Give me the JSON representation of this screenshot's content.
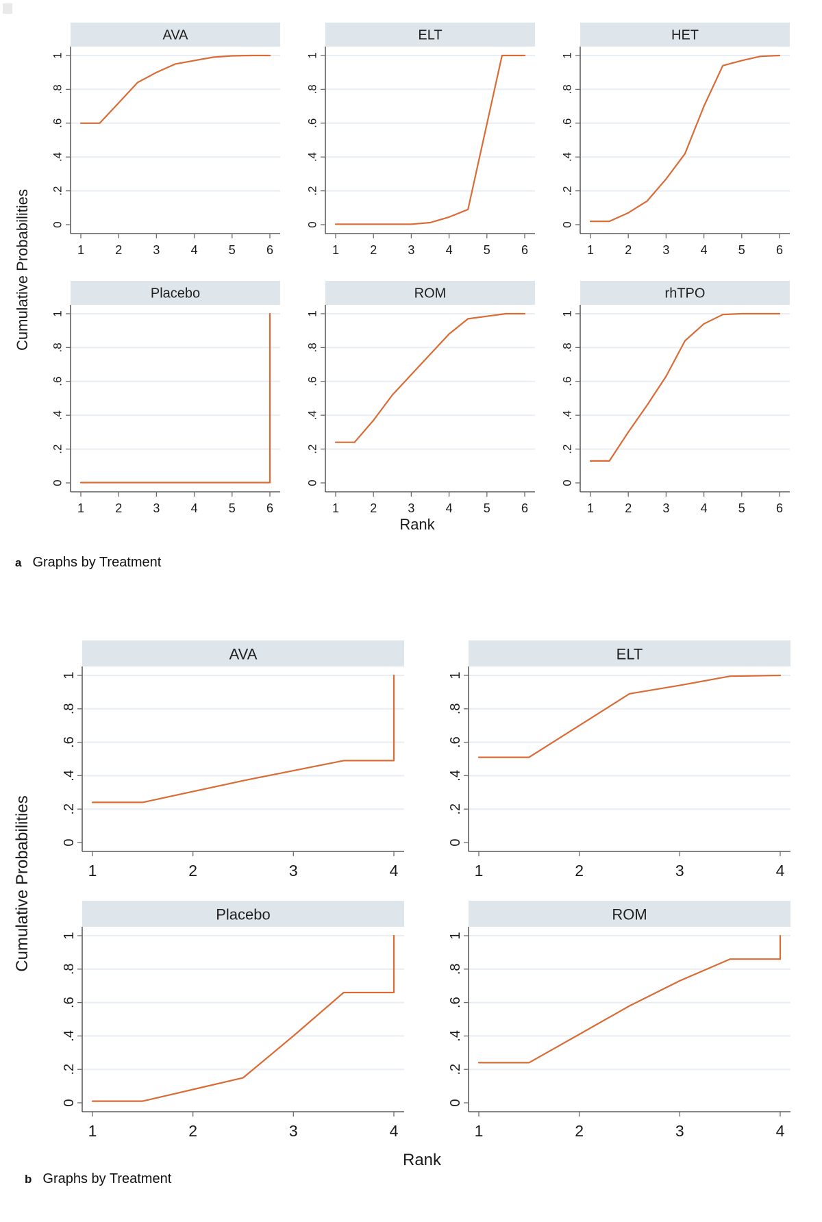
{
  "colors": {
    "curve": "#d96b35",
    "header_fill": "#dfe6eb",
    "grid_line": "#e8eef3",
    "axis": "#3a3a3a",
    "tick": "#6b6b6b",
    "text": "#1a1a1a"
  },
  "chart_data": [
    {
      "type": "line",
      "panel_label": "a",
      "caption": "Graphs by Treatment",
      "ylabel": "Cumulative Probabilities",
      "xlabel": "Rank",
      "grid": "horizontal",
      "legend": "none",
      "x_range": [
        1,
        6
      ],
      "y_range": [
        0,
        1
      ],
      "x_ticks": [
        1,
        2,
        3,
        4,
        5,
        6
      ],
      "x_tick_labels": [
        "1",
        "2",
        "3",
        "4",
        "5",
        "6"
      ],
      "y_ticks": [
        0,
        0.2,
        0.4,
        0.6,
        0.8,
        1
      ],
      "y_tick_labels": [
        "0",
        ".2",
        ".4",
        ".6",
        ".8",
        "1"
      ],
      "subplots": [
        {
          "title": "AVA",
          "points": [
            [
              1,
              0.6
            ],
            [
              1.5,
              0.6
            ],
            [
              2,
              0.72
            ],
            [
              2.5,
              0.84
            ],
            [
              3,
              0.9
            ],
            [
              3.5,
              0.95
            ],
            [
              4,
              0.97
            ],
            [
              4.5,
              0.99
            ],
            [
              5,
              0.998
            ],
            [
              5.5,
              1
            ],
            [
              6,
              1
            ]
          ]
        },
        {
          "title": "ELT",
          "points": [
            [
              1,
              0.003
            ],
            [
              3,
              0.003
            ],
            [
              3.5,
              0.012
            ],
            [
              4,
              0.045
            ],
            [
              4.5,
              0.09
            ],
            [
              5.4,
              1
            ],
            [
              6,
              1
            ]
          ]
        },
        {
          "title": "HET",
          "points": [
            [
              1,
              0.02
            ],
            [
              1.5,
              0.02
            ],
            [
              2,
              0.07
            ],
            [
              2.5,
              0.14
            ],
            [
              3,
              0.27
            ],
            [
              3.5,
              0.42
            ],
            [
              4,
              0.7
            ],
            [
              4.5,
              0.94
            ],
            [
              5,
              0.97
            ],
            [
              5.5,
              0.995
            ],
            [
              6,
              1
            ]
          ]
        },
        {
          "title": "Placebo",
          "points": [
            [
              1,
              0.002
            ],
            [
              6,
              0.002
            ],
            [
              6,
              1
            ]
          ]
        },
        {
          "title": "ROM",
          "points": [
            [
              1,
              0.24
            ],
            [
              1.5,
              0.24
            ],
            [
              2,
              0.37
            ],
            [
              2.5,
              0.52
            ],
            [
              3,
              0.64
            ],
            [
              3.5,
              0.76
            ],
            [
              4,
              0.88
            ],
            [
              4.5,
              0.97
            ],
            [
              5,
              0.985
            ],
            [
              5.5,
              1
            ],
            [
              6,
              1
            ]
          ]
        },
        {
          "title": "rhTPO",
          "points": [
            [
              1,
              0.13
            ],
            [
              1.5,
              0.13
            ],
            [
              2,
              0.3
            ],
            [
              2.5,
              0.46
            ],
            [
              3,
              0.63
            ],
            [
              3.5,
              0.84
            ],
            [
              4,
              0.94
            ],
            [
              4.5,
              0.995
            ],
            [
              5,
              1
            ],
            [
              6,
              1
            ]
          ]
        }
      ]
    },
    {
      "type": "line",
      "panel_label": "b",
      "caption": "Graphs by Treatment",
      "ylabel": "Cumulative Probabilities",
      "xlabel": "Rank",
      "grid": "horizontal",
      "legend": "none",
      "x_range": [
        1,
        4
      ],
      "y_range": [
        0,
        1
      ],
      "x_ticks": [
        1,
        2,
        3,
        4
      ],
      "x_tick_labels": [
        "1",
        "2",
        "3",
        "4"
      ],
      "y_ticks": [
        0,
        0.2,
        0.4,
        0.6,
        0.8,
        1
      ],
      "y_tick_labels": [
        "0",
        ".2",
        ".4",
        ".6",
        ".8",
        "1"
      ],
      "subplots": [
        {
          "title": "AVA",
          "points": [
            [
              1,
              0.24
            ],
            [
              1.5,
              0.24
            ],
            [
              2.5,
              0.37
            ],
            [
              3.5,
              0.49
            ],
            [
              4,
              0.49
            ],
            [
              4,
              1
            ]
          ]
        },
        {
          "title": "ELT",
          "points": [
            [
              1,
              0.51
            ],
            [
              1.5,
              0.51
            ],
            [
              2,
              0.7
            ],
            [
              2.5,
              0.89
            ],
            [
              3,
              0.94
            ],
            [
              3.5,
              0.995
            ],
            [
              4,
              1
            ]
          ]
        },
        {
          "title": "Placebo",
          "points": [
            [
              1,
              0.01
            ],
            [
              1.5,
              0.01
            ],
            [
              2,
              0.08
            ],
            [
              2.5,
              0.15
            ],
            [
              3,
              0.4
            ],
            [
              3.5,
              0.66
            ],
            [
              4,
              0.66
            ],
            [
              4,
              1
            ]
          ]
        },
        {
          "title": "ROM",
          "points": [
            [
              1,
              0.24
            ],
            [
              1.5,
              0.24
            ],
            [
              2,
              0.41
            ],
            [
              2.5,
              0.58
            ],
            [
              3,
              0.73
            ],
            [
              3.5,
              0.86
            ],
            [
              4,
              0.86
            ],
            [
              4,
              1
            ]
          ]
        }
      ]
    }
  ]
}
